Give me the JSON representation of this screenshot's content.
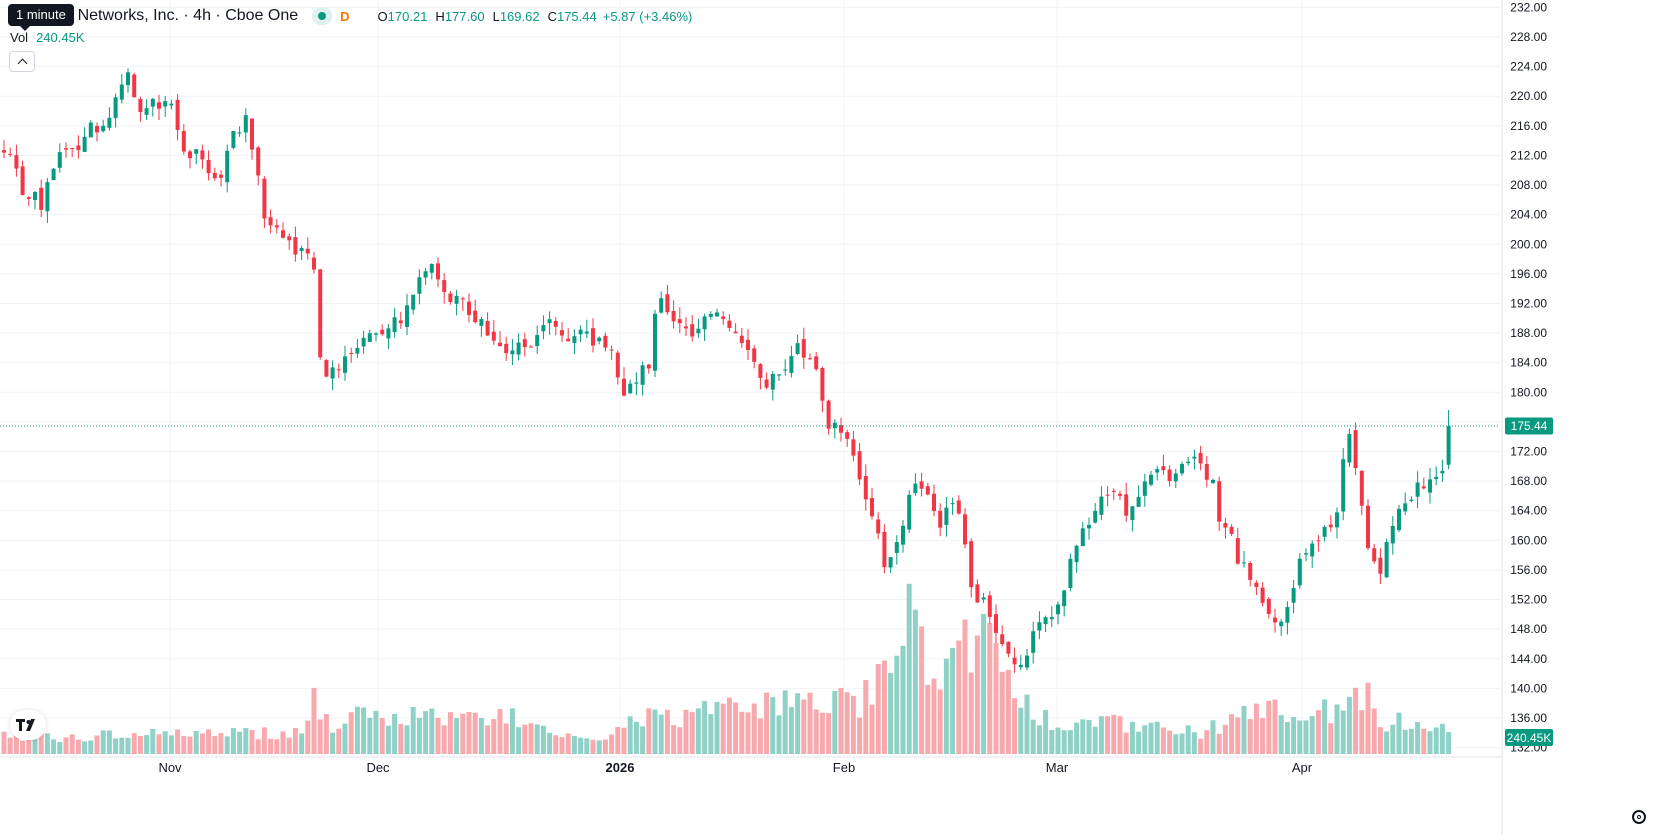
{
  "legend": {
    "title": "Palo Alto Networks, Inc. · 4h · Cboe One",
    "interval_flag": "D",
    "o_label": "O",
    "o_value": "170.21",
    "h_label": "H",
    "h_value": "177.60",
    "l_label": "L",
    "l_value": "169.62",
    "c_label": "C",
    "c_value": "175.44",
    "change": "+5.87 (+3.46%)"
  },
  "tooltip": "1 minute",
  "volume": {
    "label": "Vol",
    "value": "240.45K"
  },
  "colors": {
    "up": "#089981",
    "down": "#f23645",
    "up_volume": "#8fd1c6",
    "down_volume": "#f7a9ae",
    "grid": "#f0f3fa"
  },
  "icons": {
    "logo": "tradingview-logo-icon",
    "settings": "gear-icon",
    "collapse": "chevron-up-icon"
  },
  "chart_data": {
    "type": "candlestick",
    "x_labels": [
      "Nov",
      "Dec",
      "2026",
      "Feb",
      "Mar",
      "Apr"
    ],
    "y_ticks": [
      "232.00",
      "228.00",
      "224.00",
      "220.00",
      "216.00",
      "212.00",
      "208.00",
      "204.00",
      "200.00",
      "196.00",
      "192.00",
      "188.00",
      "184.00",
      "180.00",
      "176.00",
      "172.00",
      "168.00",
      "164.00",
      "160.00",
      "156.00",
      "152.00",
      "148.00",
      "144.00",
      "140.00",
      "136.00",
      "132.00"
    ],
    "ylim": [
      131,
      233
    ],
    "last_price_label": "175.44",
    "last_price": 175.44,
    "volume_label": "240.45K",
    "x_domain": [
      0,
      1500
    ],
    "month_x": [
      170,
      378,
      620,
      844,
      1057,
      1302
    ],
    "close_path": [
      [
        0,
        212
      ],
      [
        10,
        213
      ],
      [
        20,
        208
      ],
      [
        30,
        207
      ],
      [
        42,
        205
      ],
      [
        55,
        212
      ],
      [
        68,
        213
      ],
      [
        82,
        214
      ],
      [
        95,
        216
      ],
      [
        108,
        217
      ],
      [
        118,
        220
      ],
      [
        128,
        223
      ],
      [
        138,
        218
      ],
      [
        150,
        220
      ],
      [
        160,
        219
      ],
      [
        172,
        218
      ],
      [
        182,
        213
      ],
      [
        196,
        212
      ],
      [
        208,
        210
      ],
      [
        220,
        209
      ],
      [
        232,
        214
      ],
      [
        246,
        217
      ],
      [
        256,
        211
      ],
      [
        262,
        204
      ],
      [
        270,
        203
      ],
      [
        282,
        202
      ],
      [
        292,
        200
      ],
      [
        304,
        198
      ],
      [
        316,
        197
      ],
      [
        320,
        185
      ],
      [
        330,
        182
      ],
      [
        340,
        183
      ],
      [
        352,
        185
      ],
      [
        362,
        186
      ],
      [
        374,
        189
      ],
      [
        388,
        188
      ],
      [
        400,
        190
      ],
      [
        410,
        192
      ],
      [
        420,
        195
      ],
      [
        432,
        198
      ],
      [
        440,
        194
      ],
      [
        452,
        193
      ],
      [
        462,
        192
      ],
      [
        472,
        190
      ],
      [
        482,
        189
      ],
      [
        494,
        186
      ],
      [
        506,
        185
      ],
      [
        516,
        186
      ],
      [
        526,
        185
      ],
      [
        538,
        188
      ],
      [
        550,
        189
      ],
      [
        562,
        188
      ],
      [
        574,
        187
      ],
      [
        586,
        188
      ],
      [
        598,
        187
      ],
      [
        610,
        186
      ],
      [
        618,
        183
      ],
      [
        626,
        178
      ],
      [
        634,
        182
      ],
      [
        642,
        183
      ],
      [
        650,
        184
      ],
      [
        656,
        193
      ],
      [
        664,
        191
      ],
      [
        672,
        190
      ],
      [
        684,
        189
      ],
      [
        696,
        188
      ],
      [
        708,
        190
      ],
      [
        720,
        191
      ],
      [
        732,
        189
      ],
      [
        742,
        186
      ],
      [
        752,
        184
      ],
      [
        762,
        181
      ],
      [
        774,
        182
      ],
      [
        786,
        184
      ],
      [
        798,
        186
      ],
      [
        810,
        185
      ],
      [
        820,
        182
      ],
      [
        826,
        175
      ],
      [
        838,
        176
      ],
      [
        850,
        174
      ],
      [
        858,
        169
      ],
      [
        870,
        163
      ],
      [
        878,
        160
      ],
      [
        886,
        156
      ],
      [
        894,
        158
      ],
      [
        904,
        163
      ],
      [
        914,
        167
      ],
      [
        926,
        166
      ],
      [
        938,
        162
      ],
      [
        950,
        165
      ],
      [
        962,
        163
      ],
      [
        970,
        153
      ],
      [
        978,
        152
      ],
      [
        986,
        151
      ],
      [
        994,
        148
      ],
      [
        1002,
        145
      ],
      [
        1012,
        143
      ],
      [
        1020,
        142
      ],
      [
        1030,
        146
      ],
      [
        1040,
        148
      ],
      [
        1050,
        149
      ],
      [
        1060,
        152
      ],
      [
        1070,
        157
      ],
      [
        1080,
        160
      ],
      [
        1090,
        162
      ],
      [
        1100,
        165
      ],
      [
        1110,
        166
      ],
      [
        1120,
        165
      ],
      [
        1130,
        164
      ],
      [
        1140,
        166
      ],
      [
        1150,
        168
      ],
      [
        1160,
        169
      ],
      [
        1170,
        169
      ],
      [
        1180,
        170
      ],
      [
        1190,
        171
      ],
      [
        1200,
        170
      ],
      [
        1212,
        168
      ],
      [
        1220,
        162
      ],
      [
        1230,
        161
      ],
      [
        1240,
        157
      ],
      [
        1248,
        155
      ],
      [
        1258,
        153
      ],
      [
        1268,
        150
      ],
      [
        1278,
        148
      ],
      [
        1288,
        152
      ],
      [
        1298,
        156
      ],
      [
        1308,
        159
      ],
      [
        1318,
        160
      ],
      [
        1328,
        162
      ],
      [
        1338,
        165
      ],
      [
        1346,
        175
      ],
      [
        1354,
        172
      ],
      [
        1362,
        165
      ],
      [
        1370,
        158
      ],
      [
        1378,
        155
      ],
      [
        1386,
        160
      ],
      [
        1396,
        163
      ],
      [
        1406,
        165
      ],
      [
        1416,
        167
      ],
      [
        1426,
        168
      ],
      [
        1436,
        169
      ],
      [
        1444,
        170
      ],
      [
        1450,
        175.44
      ]
    ],
    "volume_profile": [
      [
        0,
        0.1
      ],
      [
        300,
        0.12
      ],
      [
        316,
        0.35
      ],
      [
        330,
        0.18
      ],
      [
        370,
        0.22
      ],
      [
        520,
        0.2
      ],
      [
        600,
        0.08
      ],
      [
        640,
        0.2
      ],
      [
        820,
        0.3
      ],
      [
        860,
        0.3
      ],
      [
        904,
        0.6
      ],
      [
        912,
        1.0
      ],
      [
        918,
        0.8
      ],
      [
        930,
        0.35
      ],
      [
        966,
        0.7
      ],
      [
        972,
        0.45
      ],
      [
        990,
        0.78
      ],
      [
        1000,
        0.6
      ],
      [
        1010,
        0.35
      ],
      [
        1040,
        0.2
      ],
      [
        1100,
        0.18
      ],
      [
        1200,
        0.12
      ],
      [
        1268,
        0.28
      ],
      [
        1280,
        0.22
      ],
      [
        1346,
        0.28
      ],
      [
        1370,
        0.4
      ],
      [
        1380,
        0.2
      ],
      [
        1450,
        0.15
      ]
    ]
  }
}
